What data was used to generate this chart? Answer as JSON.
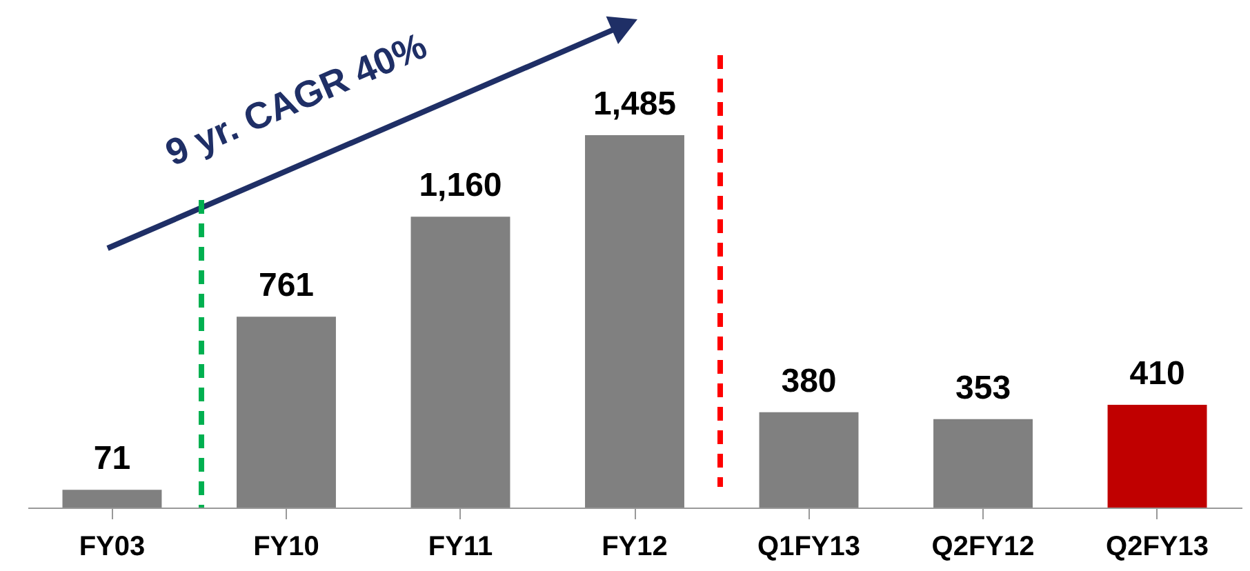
{
  "chart_data": {
    "type": "bar",
    "categories": [
      "FY03",
      "FY10",
      "FY11",
      "FY12",
      "Q1FY13",
      "Q2FY12",
      "Q2FY13"
    ],
    "values": [
      71,
      761,
      1160,
      1485,
      380,
      353,
      410
    ],
    "value_labels": [
      "71",
      "761",
      "1,160",
      "1,485",
      "380",
      "353",
      "410"
    ],
    "colors": [
      "#808080",
      "#808080",
      "#808080",
      "#808080",
      "#808080",
      "#808080",
      "#c00000"
    ],
    "annotations": [
      "9 yr. CAGR 40%"
    ]
  }
}
